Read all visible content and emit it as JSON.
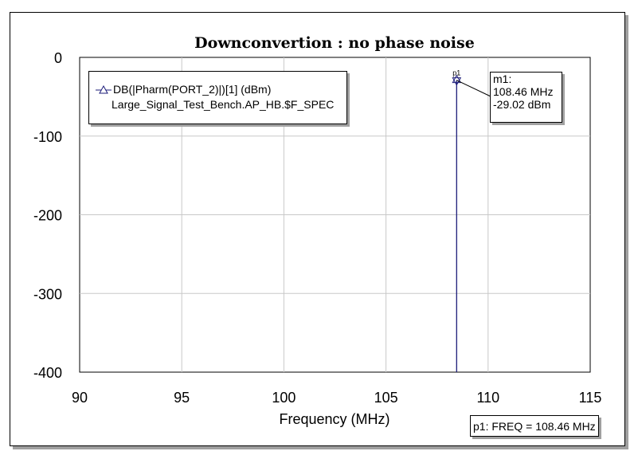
{
  "chart_data": {
    "type": "line",
    "title": "Downconvertion : no phase noise",
    "xlabel": "Frequency (MHz)",
    "ylabel": "",
    "xlim": [
      90,
      115
    ],
    "ylim": [
      -400,
      0
    ],
    "x_ticks": [
      "90",
      "95",
      "100",
      "105",
      "110",
      "115"
    ],
    "y_ticks": [
      "0",
      "-100",
      "-200",
      "-300",
      "-400"
    ],
    "grid": true,
    "legend_placement": "top-left",
    "series": [
      {
        "name": "DB(|Pharm(PORT_2)|)[1] (dBm)",
        "source": "Large_Signal_Test_Bench.AP_HB.$F_SPEC",
        "color": "#1c1c7a",
        "x": [
          108.46,
          108.46
        ],
        "y": [
          -400,
          -29.02
        ]
      }
    ],
    "marker": {
      "id": "p1",
      "name": "m1:",
      "x": 108.46,
      "y": -29.02,
      "x_text": "108.46 MHz",
      "y_text": "-29.02 dBm"
    },
    "readout": "p1: FREQ = 108.46 MHz"
  }
}
